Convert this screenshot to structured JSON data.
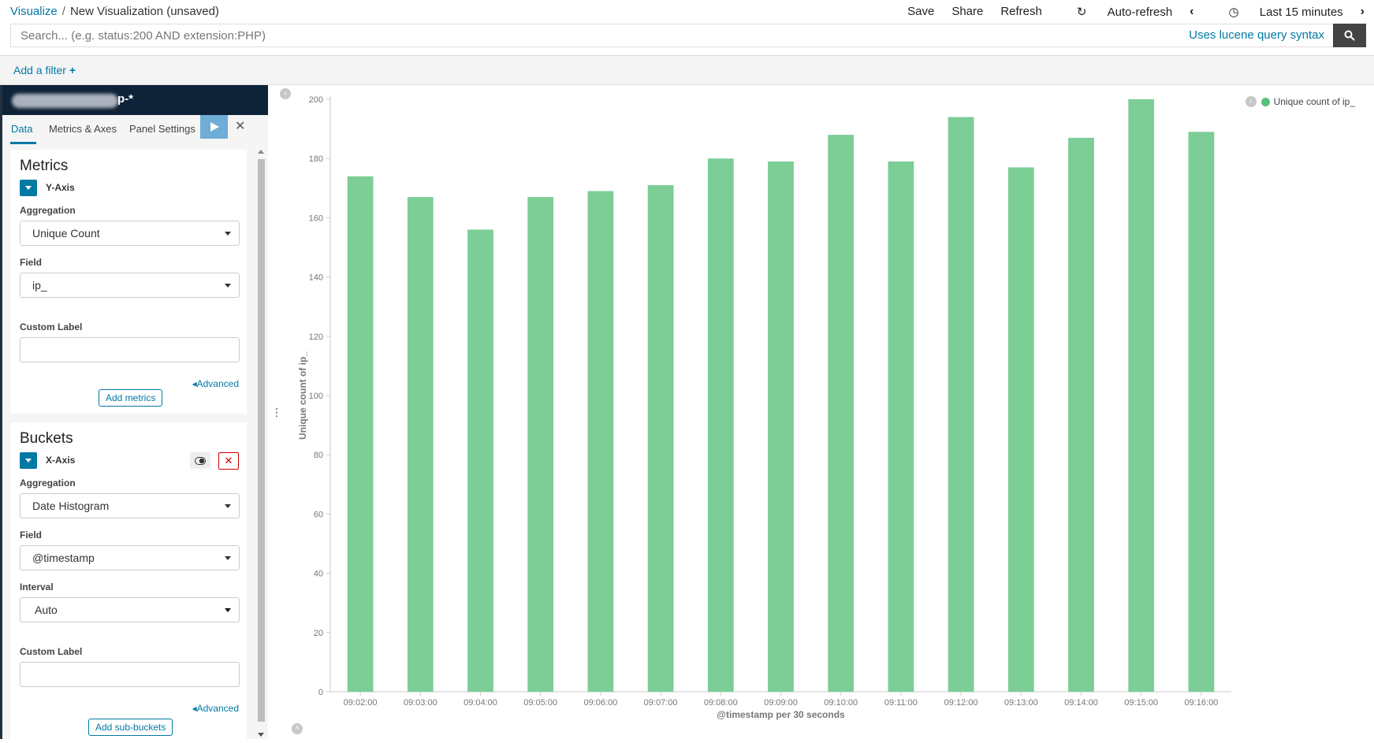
{
  "breadcrumb": {
    "root": "Visualize",
    "separator": "/",
    "current": "New Visualization (unsaved)"
  },
  "topmenu": {
    "save": "Save",
    "share": "Share",
    "refresh": "Refresh",
    "autorefresh": "Auto-refresh",
    "timerange": "Last 15 minutes"
  },
  "search": {
    "placeholder": "Search... (e.g. status:200 AND extension:PHP)",
    "syntax_link": "Uses lucene query syntax"
  },
  "filter": {
    "add_label": "Add a filter"
  },
  "sidebar": {
    "index_pattern": "p-*",
    "tabs": [
      "Data",
      "Metrics & Axes",
      "Panel Settings"
    ],
    "metrics": {
      "title": "Metrics",
      "axis": "Y-Axis",
      "aggregation_label": "Aggregation",
      "aggregation_value": "Unique Count",
      "field_label": "Field",
      "field_value": "ip_",
      "custom_label": "Custom Label",
      "advanced": "Advanced",
      "add_button": "Add metrics"
    },
    "buckets": {
      "title": "Buckets",
      "axis": "X-Axis",
      "aggregation_label": "Aggregation",
      "aggregation_value": "Date Histogram",
      "field_label": "Field",
      "field_value": "@timestamp",
      "interval_label": "Interval",
      "interval_value": "Auto",
      "custom_label": "Custom Label",
      "advanced": "Advanced",
      "add_button": "Add sub-buckets"
    }
  },
  "chart_data": {
    "type": "bar",
    "categories": [
      "09:02:00",
      "09:03:00",
      "09:04:00",
      "09:05:00",
      "09:06:00",
      "09:07:00",
      "09:08:00",
      "09:09:00",
      "09:10:00",
      "09:11:00",
      "09:12:00",
      "09:13:00",
      "09:14:00",
      "09:15:00",
      "09:16:00"
    ],
    "series": [
      {
        "name": "Unique count of ip_",
        "values": [
          174,
          167,
          156,
          167,
          169,
          171,
          180,
          179,
          188,
          179,
          194,
          177,
          187,
          200,
          189
        ]
      }
    ],
    "xlabel": "@timestamp per 30 seconds",
    "ylabel": "Unique count of ip_",
    "ylim": [
      0,
      200
    ],
    "yticks": [
      0,
      20,
      40,
      60,
      80,
      100,
      120,
      140,
      160,
      180,
      200
    ],
    "bar_color": "#7ccd96",
    "legend_position": "top-right",
    "grid": false
  }
}
